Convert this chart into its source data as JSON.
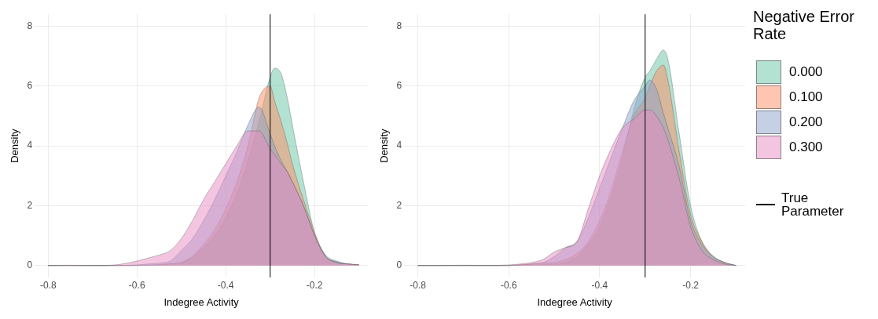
{
  "chart_data": [
    {
      "type": "area",
      "xlabel": "Indegree Activity",
      "ylabel": "Density",
      "x": [
        -0.8,
        -0.75,
        -0.7,
        -0.65,
        -0.6,
        -0.575,
        -0.55,
        -0.525,
        -0.5,
        -0.475,
        -0.45,
        -0.425,
        -0.4,
        -0.375,
        -0.35,
        -0.325,
        -0.3,
        -0.29,
        -0.275,
        -0.26,
        -0.25,
        -0.225,
        -0.2,
        -0.175,
        -0.15,
        -0.125,
        -0.1
      ],
      "xlim": [
        -0.83,
        -0.08
      ],
      "xticks": [
        -0.8,
        -0.6,
        -0.4,
        -0.2
      ],
      "ylim": [
        -0.4,
        8.4
      ],
      "yticks": [
        0,
        2,
        4,
        6,
        8
      ],
      "grid": true,
      "legend": false,
      "series": [
        {
          "color": "#b3e1d2",
          "values": [
            0,
            0,
            0,
            0,
            0,
            0.01,
            0.02,
            0.05,
            0.1,
            0.3,
            0.6,
            1.0,
            1.6,
            2.4,
            3.5,
            4.8,
            6.3,
            6.6,
            6.4,
            5.5,
            4.7,
            2.8,
            1.1,
            0.35,
            0.15,
            0.05,
            0.02
          ]
        },
        {
          "color": "#fec6b1",
          "values": [
            0,
            0,
            0,
            0,
            0,
            0.01,
            0.03,
            0.06,
            0.1,
            0.3,
            0.7,
            1.2,
            1.9,
            2.8,
            4.0,
            5.6,
            6.0,
            5.5,
            4.8,
            4.0,
            3.4,
            2.2,
            1.1,
            0.3,
            0.1,
            0.05,
            0.02
          ]
        },
        {
          "color": "#c6d0e5",
          "values": [
            0,
            0,
            0,
            0,
            0.02,
            0.05,
            0.08,
            0.15,
            0.5,
            0.9,
            1.5,
            2.2,
            3.0,
            3.8,
            4.7,
            5.3,
            4.4,
            4.0,
            3.5,
            3.1,
            2.8,
            2.0,
            1.0,
            0.3,
            0.12,
            0.05,
            0.02
          ]
        },
        {
          "color": "#f3c5e1",
          "values": [
            0,
            0.01,
            0,
            0.02,
            0.15,
            0.25,
            0.35,
            0.5,
            0.9,
            1.5,
            2.2,
            2.8,
            3.4,
            4.0,
            4.5,
            4.5,
            3.9,
            3.7,
            3.4,
            3.1,
            2.8,
            2.0,
            1.0,
            0.3,
            0.1,
            0.05,
            0.03
          ]
        }
      ],
      "ref_lines": [
        {
          "axis": "x",
          "value": -0.3,
          "color": "#000000"
        }
      ]
    },
    {
      "type": "area",
      "xlabel": "Indegree Activity",
      "ylabel": "Density",
      "legend_title": "Negative Error Rate",
      "x": [
        -0.8,
        -0.75,
        -0.7,
        -0.65,
        -0.6,
        -0.575,
        -0.55,
        -0.525,
        -0.5,
        -0.475,
        -0.45,
        -0.425,
        -0.4,
        -0.375,
        -0.35,
        -0.325,
        -0.3,
        -0.29,
        -0.275,
        -0.26,
        -0.25,
        -0.225,
        -0.2,
        -0.175,
        -0.15,
        -0.125,
        -0.1
      ],
      "xlim": [
        -0.83,
        -0.08
      ],
      "xticks": [
        -0.8,
        -0.6,
        -0.4,
        -0.2
      ],
      "ylim": [
        -0.4,
        8.4
      ],
      "yticks": [
        0,
        2,
        4,
        6,
        8
      ],
      "grid": true,
      "legend": "right",
      "series": [
        {
          "name": "0.000",
          "color": "#b3e1d2",
          "values": [
            0,
            0,
            0,
            0,
            0,
            0.01,
            0.02,
            0.04,
            0.05,
            0.1,
            0.3,
            0.7,
            1.3,
            2.3,
            3.6,
            5.2,
            6.3,
            6.5,
            6.9,
            7.2,
            6.9,
            4.4,
            2.0,
            0.8,
            0.3,
            0.1,
            0
          ]
        },
        {
          "name": "0.100",
          "color": "#fec6b1",
          "values": [
            0,
            0,
            0,
            0,
            0,
            0.02,
            0.05,
            0.08,
            0.1,
            0.2,
            0.4,
            0.8,
            1.5,
            2.5,
            3.8,
            5.0,
            5.6,
            6.0,
            6.5,
            6.7,
            6.2,
            3.8,
            1.7,
            0.8,
            0.3,
            0.1,
            0
          ]
        },
        {
          "name": "0.200",
          "color": "#c6d0e5",
          "values": [
            0,
            0,
            0.01,
            0,
            0,
            0.02,
            0.05,
            0.1,
            0.3,
            0.6,
            0.8,
            1.6,
            2.6,
            3.6,
            4.6,
            5.5,
            6.0,
            6.2,
            5.9,
            5.1,
            4.6,
            3.3,
            1.5,
            0.7,
            0.3,
            0.1,
            0
          ]
        },
        {
          "name": "0.300",
          "color": "#f3c5e1",
          "values": [
            0,
            0,
            0,
            0,
            0.02,
            0.05,
            0.1,
            0.2,
            0.45,
            0.6,
            0.8,
            1.9,
            3.0,
            3.9,
            4.6,
            4.9,
            5.2,
            5.2,
            5.0,
            4.6,
            4.2,
            2.9,
            1.3,
            0.5,
            0.2,
            0.05,
            0
          ]
        }
      ],
      "ref_lines": [
        {
          "axis": "x",
          "value": -0.3,
          "color": "#000000"
        }
      ],
      "annotations": [
        "True Parameter"
      ]
    }
  ]
}
